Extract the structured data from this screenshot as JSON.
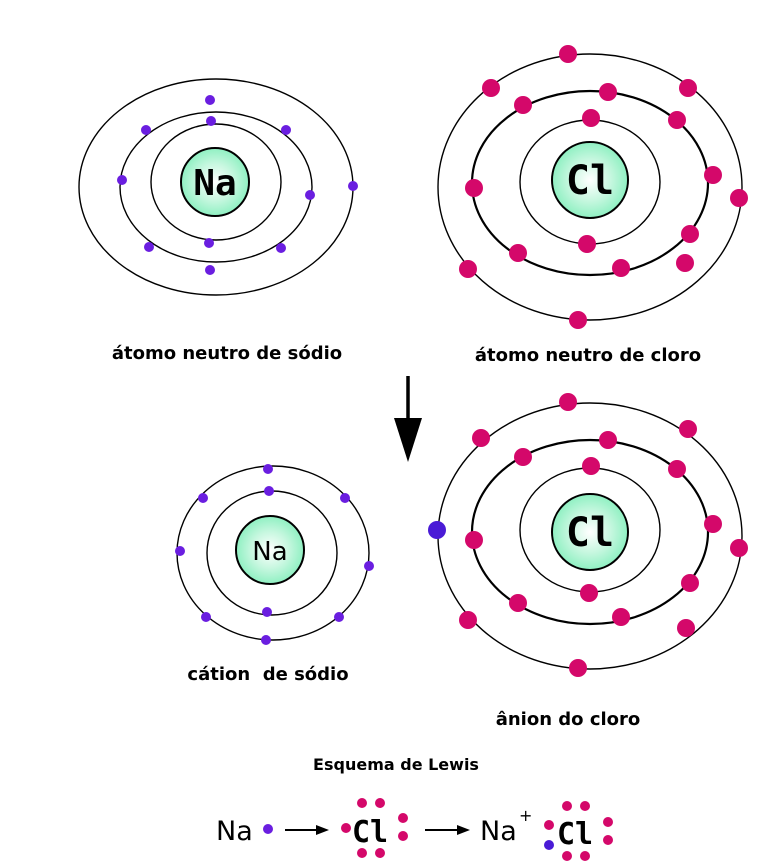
{
  "colors": {
    "sodium_electron": "#6a1ee0",
    "chlorine_electron": "#d4086a",
    "transferred_electron": "#4a1bd6",
    "nucleus_glow": "#8ff0c2",
    "orbit": "#000000"
  },
  "atoms": {
    "sodium_neutral": {
      "symbol": "Na",
      "caption": "átomo neutro de sódio",
      "shells": [
        2,
        8,
        1
      ]
    },
    "chlorine_neutral": {
      "symbol": "Cl",
      "caption": "átomo neutro de cloro",
      "shells": [
        2,
        8,
        7
      ]
    },
    "sodium_cation": {
      "symbol": "Na",
      "caption": "cátion  de sódio",
      "shells": [
        2,
        8
      ]
    },
    "chlorine_anion": {
      "symbol": "Cl",
      "caption": "ânion do cloro",
      "shells": [
        2,
        8,
        8
      ]
    }
  },
  "lewis": {
    "title": "Esquema de Lewis",
    "sodium": "Na",
    "chlorine": "Cl",
    "cation": "Na",
    "cation_charge": "+",
    "anion": "Cl"
  },
  "arrow_icon": "down-arrow-icon"
}
